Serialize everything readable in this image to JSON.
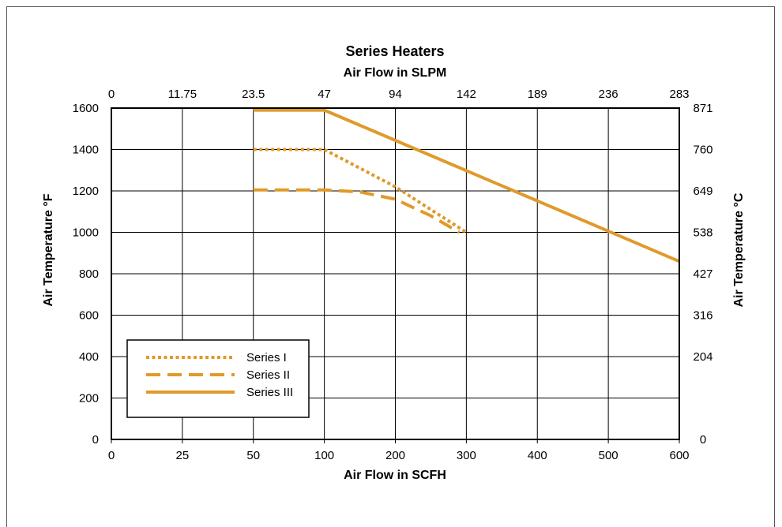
{
  "chart_data": {
    "type": "line",
    "title": "Series Heaters",
    "xlabel": "Air Flow in SCFH",
    "x2label": "Air Flow in SLPM",
    "ylabel": "Air Temperature °F",
    "y2label": "Air Temperature °C",
    "x_ticks": [
      "0",
      "25",
      "50",
      "100",
      "200",
      "300",
      "400",
      "500",
      "600"
    ],
    "x2_ticks": [
      "0",
      "11.75",
      "23.5",
      "47",
      "94",
      "142",
      "189",
      "236",
      "283"
    ],
    "y_ticks": [
      0,
      200,
      400,
      600,
      800,
      1000,
      1200,
      1400,
      1600
    ],
    "y2_ticks": [
      "0",
      "204",
      "316",
      "427",
      "538",
      "649",
      "760",
      "871"
    ],
    "ylim": [
      0,
      1600
    ],
    "grid": true,
    "legend_position": "bottom-left",
    "series": [
      {
        "name": "Series I",
        "style": "dotted",
        "color": "#E09A2A",
        "points": [
          [
            50,
            1400
          ],
          [
            100,
            1400
          ],
          [
            200,
            1220
          ],
          [
            300,
            1000
          ]
        ]
      },
      {
        "name": "Series II",
        "style": "dashed",
        "color": "#E09A2A",
        "points": [
          [
            50,
            1205
          ],
          [
            100,
            1205
          ],
          [
            150,
            1195
          ],
          [
            200,
            1160
          ],
          [
            250,
            1080
          ],
          [
            290,
            1000
          ]
        ]
      },
      {
        "name": "Series III",
        "style": "solid",
        "color": "#E09A2A",
        "points": [
          [
            50,
            1590
          ],
          [
            100,
            1590
          ],
          [
            600,
            860
          ]
        ]
      }
    ]
  }
}
